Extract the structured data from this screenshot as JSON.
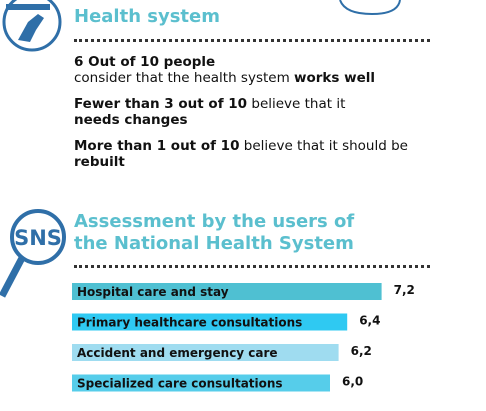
{
  "sections": [
    {
      "title": "Health system",
      "paragraphs": [
        [
          [
            {
              "text": "6 Out of 10 people",
              "bold": true
            }
          ],
          [
            {
              "text": "consider that the health system ",
              "bold": false
            },
            {
              "text": "works well",
              "bold": true
            }
          ]
        ],
        [
          [
            {
              "text": "Fewer than 3 out of 10",
              "bold": true
            },
            {
              "text": " believe that it",
              "bold": false
            }
          ],
          [
            {
              "text": "needs changes",
              "bold": true
            }
          ]
        ],
        [
          [
            {
              "text": "More than 1 out of 10",
              "bold": true
            },
            {
              "text": " believe that it should be",
              "bold": false
            }
          ],
          [
            {
              "text": "rebuilt",
              "bold": true
            }
          ]
        ]
      ]
    },
    {
      "title": [
        "Assessment by the users of",
        "the National Health System"
      ],
      "icon_label": "SNS"
    }
  ],
  "chart_data": {
    "type": "bar",
    "orientation": "horizontal",
    "categories": [
      "Hospital care and stay",
      "Primary healthcare consultations",
      "Accident and emergency care",
      "Specialized care consultations"
    ],
    "values": [
      7.2,
      6.4,
      6.2,
      6.0
    ],
    "value_labels": [
      "7,2",
      "6,4",
      "6,2",
      "6,0"
    ],
    "colors": [
      "#4fc0d2",
      "#2fc9f2",
      "#9fdcf0",
      "#56cdea"
    ]
  }
}
